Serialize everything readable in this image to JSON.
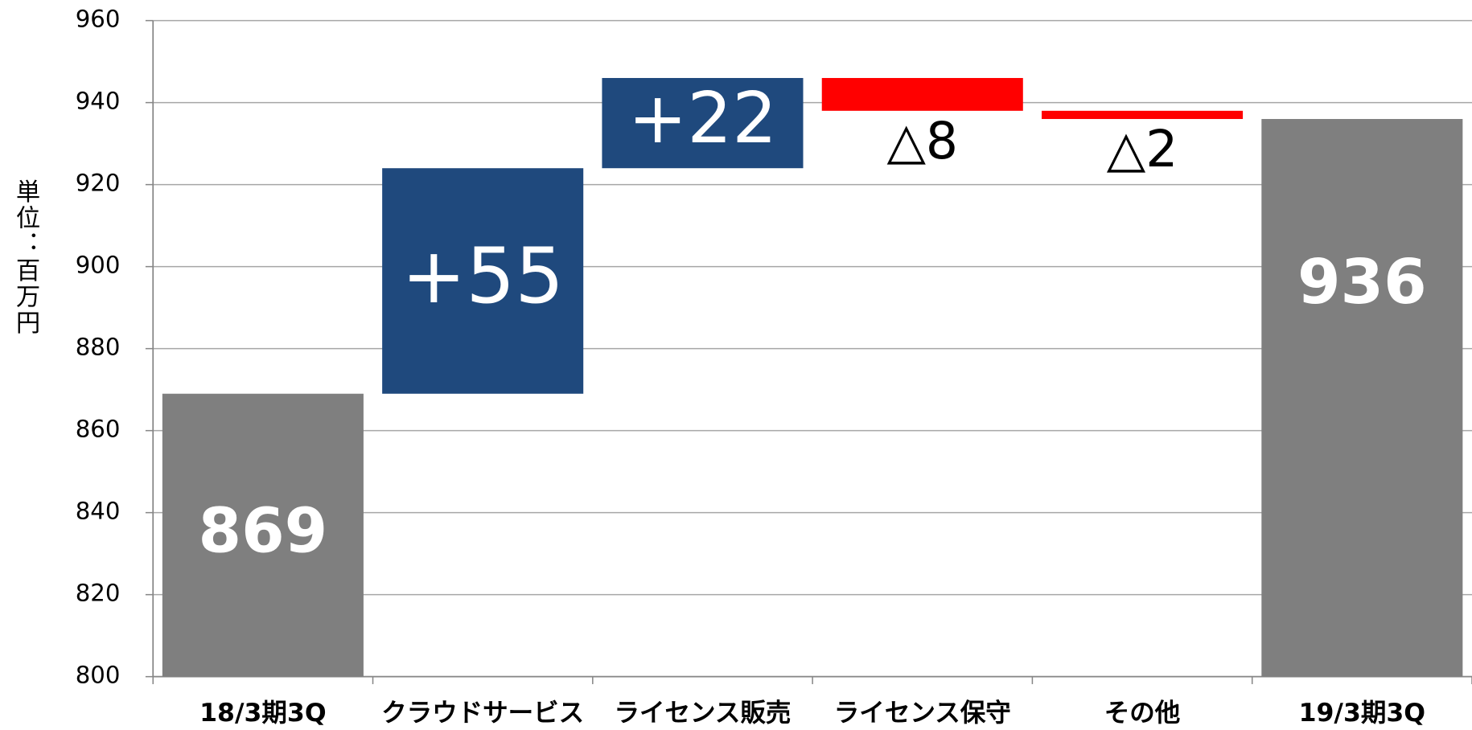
{
  "chart_data": {
    "type": "waterfall",
    "y_label": "単位：百万円",
    "categories": [
      "18/3期3Q",
      "クラウドサービス",
      "ライセンス販売",
      "ライセンス保守",
      "その他",
      "19/3期3Q"
    ],
    "values": [
      869,
      55,
      22,
      -8,
      -2,
      936
    ],
    "value_labels": [
      "869",
      "+55",
      "+22",
      "△8",
      "△2",
      "936"
    ],
    "colors": [
      "#7f7f7f",
      "#1f497d",
      "#1f497d",
      "#ff0000",
      "#ff0000",
      "#7f7f7f"
    ],
    "total_indices": [
      0,
      5
    ],
    "ylim": [
      800,
      960
    ],
    "yticks": [
      800,
      820,
      840,
      860,
      880,
      900,
      920,
      940,
      960
    ],
    "grid": true
  }
}
